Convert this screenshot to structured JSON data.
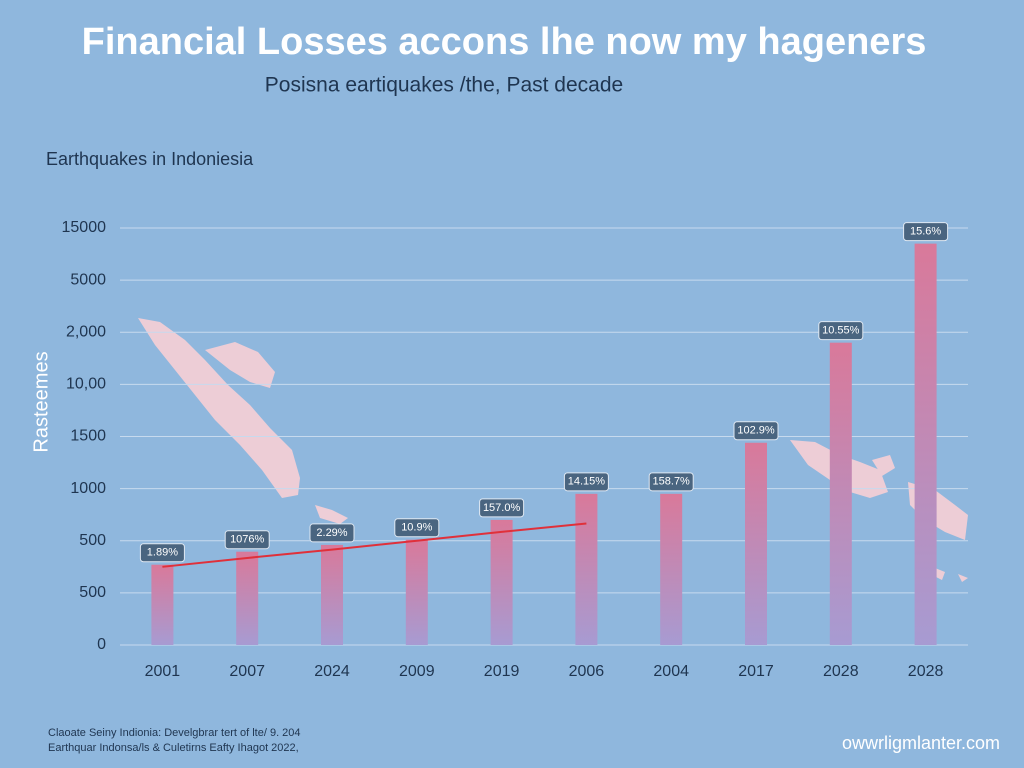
{
  "chart_data": {
    "type": "bar",
    "title": "Financial Losses accons lhe now my hageners",
    "subtitle": "Posisna eartiquakes /the, Past decade",
    "chart_label": "Earthquakes in Indoniesia",
    "y_label": "Rasteemes",
    "categories": [
      "2001",
      "2007",
      "2024",
      "2009",
      "2019",
      "2006",
      "2004",
      "2017",
      "2028",
      "2028"
    ],
    "values": [
      1.54,
      1.79,
      1.92,
      2.02,
      2.4,
      2.9,
      2.9,
      3.88,
      5.8,
      7.7
    ],
    "annotations": [
      "1.89%",
      "1076%",
      "2.29%",
      "10.9%",
      "157.0%",
      "14.15%",
      "158.7%",
      "102.9%",
      "10.55%",
      "15.6%"
    ],
    "color": "#d9799a",
    "trend": {
      "color": "#e0303a",
      "values": [
        1.5,
        1.67,
        1.83,
        2.0,
        2.17,
        2.33
      ]
    },
    "ylim": [
      0,
      8
    ],
    "yticks": [
      {
        "value": 0,
        "label": "0"
      },
      {
        "value": 1,
        "label": "500"
      },
      {
        "value": 2,
        "label": "500"
      },
      {
        "value": 3,
        "label": "1000"
      },
      {
        "value": 4,
        "label": "1500"
      },
      {
        "value": 5,
        "label": "10,00"
      },
      {
        "value": 6,
        "label": "2,000"
      },
      {
        "value": 7,
        "label": "5000"
      },
      {
        "value": 8,
        "label": "15000"
      }
    ],
    "grid": true,
    "footnote": [
      "Claoate Seiny Indionia: Develgbrar tert of lte/ 9. 204",
      "Earthquar Indonsa/ls & Culetirns Eafty Ihagot 2022,"
    ],
    "watermark": "owwrligmlanter.com"
  }
}
